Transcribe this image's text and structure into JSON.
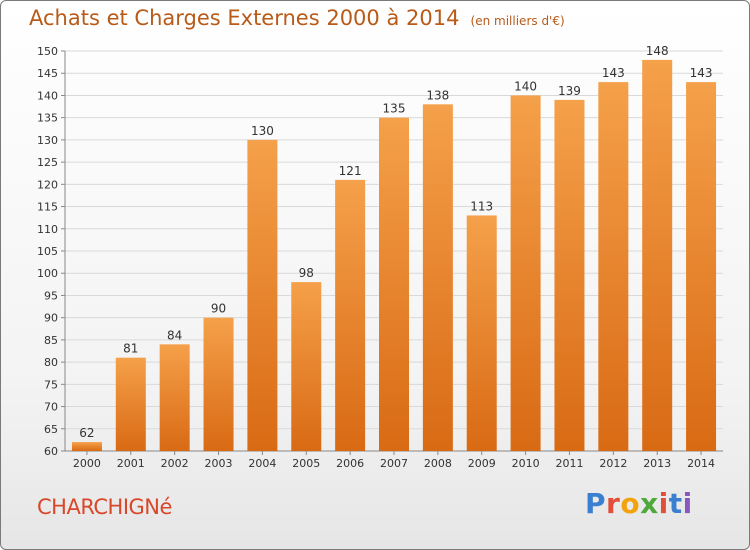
{
  "header": {
    "title": "Achats et Charges Externes 2000 à 2014",
    "subtitle": "(en milliers d'€)"
  },
  "footer": {
    "commune": "CHARCHIGNé",
    "logo_text": "Proxiti"
  },
  "colors": {
    "bar_top": "#f5a04a",
    "bar_bottom": "#d96a14",
    "title": "#b85a18",
    "commune": "#d9472b"
  },
  "chart_data": {
    "type": "bar",
    "title": "Achats et Charges Externes 2000 à 2014",
    "subtitle": "(en milliers d'€)",
    "xlabel": "",
    "ylabel": "",
    "categories": [
      "2000",
      "2001",
      "2002",
      "2003",
      "2004",
      "2005",
      "2006",
      "2007",
      "2008",
      "2009",
      "2010",
      "2011",
      "2012",
      "2013",
      "2014"
    ],
    "values": [
      62,
      81,
      84,
      90,
      130,
      98,
      121,
      135,
      138,
      113,
      140,
      139,
      143,
      148,
      143
    ],
    "ylim": [
      60,
      150
    ],
    "yticks": [
      60,
      65,
      70,
      75,
      80,
      85,
      90,
      95,
      100,
      105,
      110,
      115,
      120,
      125,
      130,
      135,
      140,
      145,
      150
    ],
    "grid": true,
    "legend": "none"
  }
}
